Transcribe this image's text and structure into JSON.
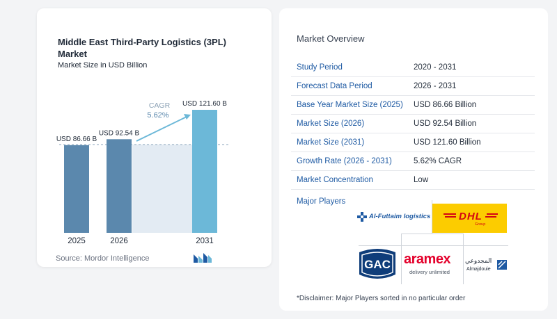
{
  "chart_data": {
    "type": "bar",
    "title": "Middle East Third-Party Logistics (3PL) Market",
    "subtitle": "Market Size in USD Billion",
    "categories": [
      "2025",
      "2026",
      "2031"
    ],
    "values": [
      86.66,
      92.54,
      121.6
    ],
    "data_labels": [
      "USD 86.66 B",
      "USD 92.54 B",
      "USD 121.60 B"
    ],
    "ylim": [
      0,
      121.6
    ],
    "cagr_label": "CAGR",
    "cagr_value": "5.62%",
    "bar_color": "#5b88ad",
    "highlight_color": "#6cb8d8"
  },
  "source": "Source:  Mordor Intelligence",
  "overview": {
    "title": "Market Overview",
    "rows": [
      {
        "label": "Study Period",
        "value": "2020 - 2031"
      },
      {
        "label": "Forecast Data Period",
        "value": "2026 - 2031"
      },
      {
        "label": "Base Year Market Size (2025)",
        "value": "USD 86.66 Billion"
      },
      {
        "label": "Market Size (2026)",
        "value": "USD 92.54 Billion"
      },
      {
        "label": "Market Size (2031)",
        "value": "USD 121.60 Billion"
      },
      {
        "label": "Growth Rate (2026 - 2031)",
        "value": "5.62% CAGR"
      },
      {
        "label": "Market Concentration",
        "value": "Low"
      }
    ]
  },
  "players": {
    "title": "Major Players",
    "logos": {
      "alfuttaim": "Al-Futtaim logistics",
      "dhl": "DHL",
      "dhl_group": "Group",
      "gac": "GAC",
      "aramex": "aramex",
      "aramex_tagline": "delivery unlimited",
      "almajdouie_ar": "المجدوعي",
      "almajdouie": "Almajdouie"
    }
  },
  "disclaimer": "*Disclaimer: Major Players sorted in no particular order"
}
